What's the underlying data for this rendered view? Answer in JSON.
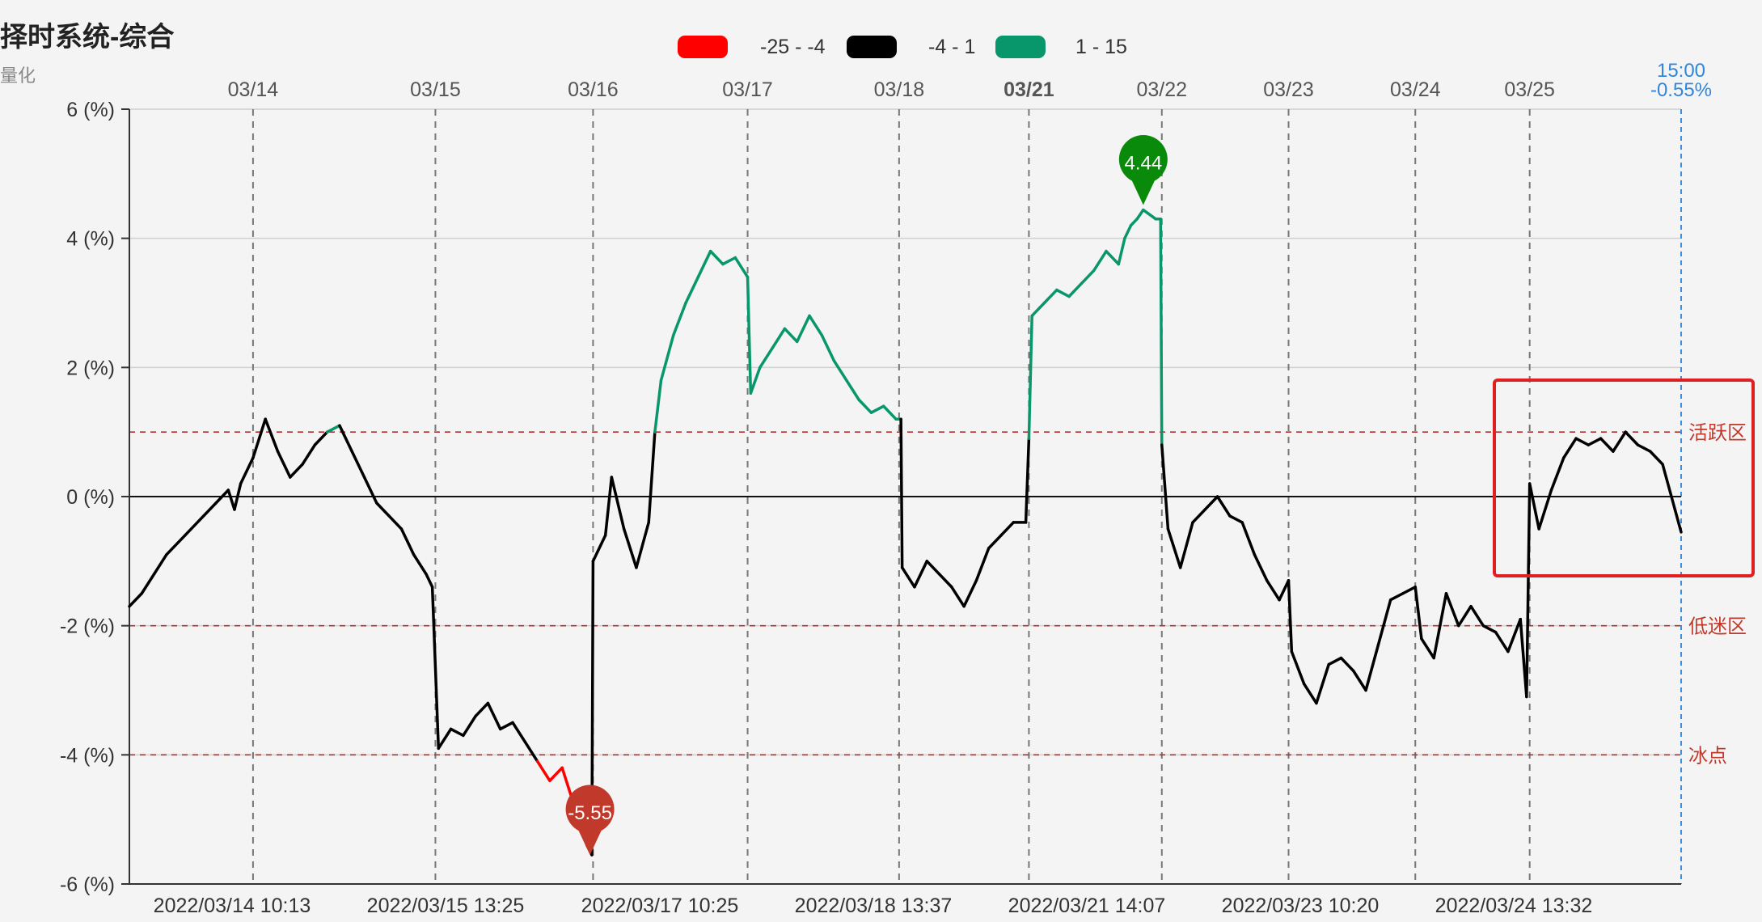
{
  "title": "择时系统-综合",
  "subtitle": "量化",
  "legend": [
    {
      "label": "-25 - -4",
      "color": "#ff0000"
    },
    {
      "label": "-4 - 1",
      "color": "#000000"
    },
    {
      "label": "1 - 15",
      "color": "#08966b"
    }
  ],
  "top_dates": [
    "03/14",
    "03/15",
    "03/16",
    "03/17",
    "03/18",
    "03/21",
    "03/22",
    "03/23",
    "03/24",
    "03/25"
  ],
  "bottom_labels": [
    "2022/03/14 10:13",
    "2022/03/15 13:25",
    "2022/03/17 10:25",
    "2022/03/18 13:37",
    "2022/03/21 14:07",
    "2022/03/23 10:20",
    "2022/03/24 13:32"
  ],
  "current": {
    "time": "15:00",
    "value": "-0.55%"
  },
  "zones": [
    {
      "label": "活跃区",
      "value": 1
    },
    {
      "label": "低迷区",
      "value": -2
    },
    {
      "label": "冰点",
      "value": -4
    }
  ],
  "markers": {
    "max": "4.44",
    "min": "-5.55"
  },
  "chart_data": {
    "type": "line",
    "title": "择时系统-综合",
    "ylim": [
      -6,
      6
    ],
    "yticks": [
      "6 (%)",
      "4 (%)",
      "2 (%)",
      "0 (%)",
      "-2 (%)",
      "-4 (%)",
      "-6 (%)"
    ],
    "series": [
      {
        "points": [
          [
            0,
            -1.7
          ],
          [
            2,
            -1.5
          ],
          [
            4,
            -1.2
          ],
          [
            6,
            -0.9
          ],
          [
            9,
            -0.6
          ],
          [
            12,
            -0.3
          ],
          [
            14,
            -0.1
          ],
          [
            16,
            0.1
          ],
          [
            17,
            -0.2
          ],
          [
            18,
            0.2
          ],
          [
            20,
            0.6
          ],
          [
            22,
            1.2
          ],
          [
            24,
            0.7
          ],
          [
            26,
            0.3
          ],
          [
            28,
            0.5
          ],
          [
            30,
            0.8
          ],
          [
            32,
            1.0
          ],
          [
            34,
            1.1
          ],
          [
            36,
            0.7
          ],
          [
            38,
            0.3
          ],
          [
            40,
            -0.1
          ],
          [
            42,
            -0.3
          ],
          [
            44,
            -0.5
          ],
          [
            46,
            -0.9
          ],
          [
            48,
            -1.2
          ],
          [
            49,
            -1.4
          ],
          [
            50,
            -3.9
          ],
          [
            52,
            -3.6
          ],
          [
            54,
            -3.7
          ],
          [
            56,
            -3.4
          ],
          [
            58,
            -3.2
          ],
          [
            60,
            -3.6
          ],
          [
            62,
            -3.5
          ],
          [
            64,
            -3.8
          ],
          [
            66,
            -4.1
          ],
          [
            68,
            -4.4
          ],
          [
            70,
            -4.2
          ],
          [
            72,
            -4.8
          ],
          [
            73,
            -5.1
          ],
          [
            74,
            -5.4
          ],
          [
            74.8,
            -5.55
          ],
          [
            75,
            -1.0
          ],
          [
            77,
            -0.6
          ],
          [
            78,
            0.3
          ],
          [
            80,
            -0.5
          ],
          [
            82,
            -1.1
          ],
          [
            84,
            -0.4
          ],
          [
            85,
            1.0
          ],
          [
            86,
            1.8
          ],
          [
            88,
            2.5
          ],
          [
            90,
            3.0
          ],
          [
            92,
            3.4
          ],
          [
            94,
            3.8
          ],
          [
            96,
            3.6
          ],
          [
            98,
            3.7
          ],
          [
            100,
            3.4
          ],
          [
            100.5,
            1.6
          ],
          [
            102,
            2.0
          ],
          [
            104,
            2.3
          ],
          [
            106,
            2.6
          ],
          [
            108,
            2.4
          ],
          [
            110,
            2.8
          ],
          [
            112,
            2.5
          ],
          [
            114,
            2.1
          ],
          [
            116,
            1.8
          ],
          [
            118,
            1.5
          ],
          [
            120,
            1.3
          ],
          [
            122,
            1.4
          ],
          [
            124,
            1.2
          ],
          [
            124.8,
            1.2
          ],
          [
            125,
            -1.1
          ],
          [
            127,
            -1.4
          ],
          [
            129,
            -1.0
          ],
          [
            131,
            -1.2
          ],
          [
            133,
            -1.4
          ],
          [
            135,
            -1.7
          ],
          [
            137,
            -1.3
          ],
          [
            139,
            -0.8
          ],
          [
            141,
            -0.6
          ],
          [
            143,
            -0.4
          ],
          [
            145,
            -0.4
          ],
          [
            145.5,
            0.9
          ],
          [
            146,
            2.8
          ],
          [
            148,
            3.0
          ],
          [
            150,
            3.2
          ],
          [
            152,
            3.1
          ],
          [
            154,
            3.3
          ],
          [
            156,
            3.5
          ],
          [
            158,
            3.8
          ],
          [
            160,
            3.6
          ],
          [
            161,
            4.0
          ],
          [
            162,
            4.2
          ],
          [
            163,
            4.3
          ],
          [
            164,
            4.44
          ],
          [
            166,
            4.3
          ],
          [
            166.8,
            4.3
          ],
          [
            167,
            0.8
          ],
          [
            168,
            -0.5
          ],
          [
            170,
            -1.1
          ],
          [
            172,
            -0.4
          ],
          [
            174,
            -0.2
          ],
          [
            176,
            0.0
          ],
          [
            178,
            -0.3
          ],
          [
            180,
            -0.4
          ],
          [
            182,
            -0.9
          ],
          [
            184,
            -1.3
          ],
          [
            186,
            -1.6
          ],
          [
            187.5,
            -1.3
          ],
          [
            188,
            -2.4
          ],
          [
            190,
            -2.9
          ],
          [
            192,
            -3.2
          ],
          [
            194,
            -2.6
          ],
          [
            196,
            -2.5
          ],
          [
            198,
            -2.7
          ],
          [
            200,
            -3.0
          ],
          [
            202,
            -2.3
          ],
          [
            204,
            -1.6
          ],
          [
            206,
            -1.5
          ],
          [
            208,
            -1.4
          ],
          [
            209,
            -2.2
          ],
          [
            211,
            -2.5
          ],
          [
            213,
            -1.5
          ],
          [
            215,
            -2.0
          ],
          [
            217,
            -1.7
          ],
          [
            219,
            -2.0
          ],
          [
            221,
            -2.1
          ],
          [
            223,
            -2.4
          ],
          [
            225,
            -1.9
          ],
          [
            226,
            -3.1
          ],
          [
            226.5,
            0.2
          ],
          [
            228,
            -0.5
          ],
          [
            230,
            0.1
          ],
          [
            232,
            0.6
          ],
          [
            234,
            0.9
          ],
          [
            236,
            0.8
          ],
          [
            238,
            0.9
          ],
          [
            240,
            0.7
          ],
          [
            242,
            1.0
          ],
          [
            244,
            0.8
          ],
          [
            246,
            0.7
          ],
          [
            248,
            0.5
          ],
          [
            250,
            -0.2
          ],
          [
            251,
            -0.55
          ]
        ]
      }
    ]
  }
}
